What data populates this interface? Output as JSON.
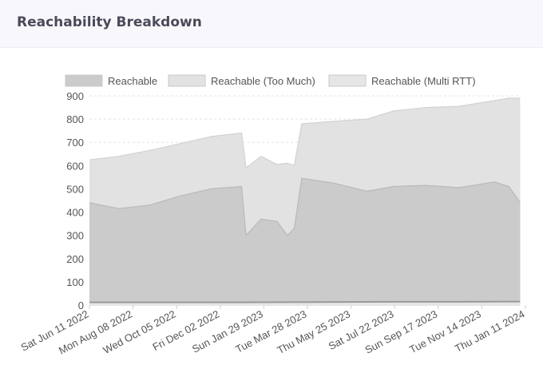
{
  "header": {
    "title": "Reachability Breakdown"
  },
  "chart_data": {
    "type": "area",
    "stacked": false,
    "legend_position": "top",
    "grid": true,
    "ylim": [
      0,
      900
    ],
    "y_ticks": [
      0,
      100,
      200,
      300,
      400,
      500,
      600,
      700,
      800,
      900
    ],
    "x_range": [
      "2022-06-11",
      "2024-01-11"
    ],
    "x_tick_labels": [
      "Sat Jun 11 2022",
      "Mon Aug 08 2022",
      "Wed Oct 05 2022",
      "Fri Dec 02 2022",
      "Sun Jan 29 2023",
      "Tue Mar 28 2023",
      "Thu May 25 2023",
      "Sat Jul 22 2023",
      "Sun Sep 17 2023",
      "Tue Nov 14 2023",
      "Thu Jan 11 2024"
    ],
    "series": [
      {
        "name": "Reachable",
        "color": "#cbcbcb",
        "points": [
          [
            "2022-06-11",
            440
          ],
          [
            "2022-07-20",
            415
          ],
          [
            "2022-08-30",
            430
          ],
          [
            "2022-10-10",
            470
          ],
          [
            "2022-11-20",
            500
          ],
          [
            "2022-12-30",
            510
          ],
          [
            "2023-01-05",
            300
          ],
          [
            "2023-01-25",
            370
          ],
          [
            "2023-02-15",
            360
          ],
          [
            "2023-03-01",
            300
          ],
          [
            "2023-03-10",
            330
          ],
          [
            "2023-03-20",
            545
          ],
          [
            "2023-05-01",
            525
          ],
          [
            "2023-06-15",
            490
          ],
          [
            "2023-07-20",
            510
          ],
          [
            "2023-09-01",
            515
          ],
          [
            "2023-10-15",
            505
          ],
          [
            "2023-12-01",
            530
          ],
          [
            "2023-12-20",
            510
          ],
          [
            "2024-01-04",
            440
          ]
        ]
      },
      {
        "name": "Reachable (Too Much)",
        "color": "#e2e2e2",
        "points": [
          [
            "2022-06-11",
            625
          ],
          [
            "2022-07-20",
            640
          ],
          [
            "2022-08-30",
            665
          ],
          [
            "2022-10-10",
            695
          ],
          [
            "2022-11-20",
            725
          ],
          [
            "2022-12-30",
            740
          ],
          [
            "2023-01-05",
            590
          ],
          [
            "2023-01-25",
            640
          ],
          [
            "2023-02-15",
            605
          ],
          [
            "2023-03-01",
            610
          ],
          [
            "2023-03-10",
            600
          ],
          [
            "2023-03-20",
            780
          ],
          [
            "2023-05-01",
            790
          ],
          [
            "2023-06-15",
            800
          ],
          [
            "2023-07-20",
            835
          ],
          [
            "2023-09-01",
            850
          ],
          [
            "2023-10-15",
            855
          ],
          [
            "2023-12-01",
            880
          ],
          [
            "2023-12-20",
            890
          ],
          [
            "2024-01-04",
            890
          ]
        ]
      },
      {
        "name": "Reachable (Multi RTT)",
        "color": "#e6e6e6",
        "points": [
          [
            "2022-06-11",
            12
          ],
          [
            "2022-10-10",
            12
          ],
          [
            "2023-01-05",
            12
          ],
          [
            "2023-03-20",
            13
          ],
          [
            "2023-07-20",
            14
          ],
          [
            "2023-10-15",
            14
          ],
          [
            "2024-01-04",
            15
          ]
        ]
      }
    ]
  }
}
